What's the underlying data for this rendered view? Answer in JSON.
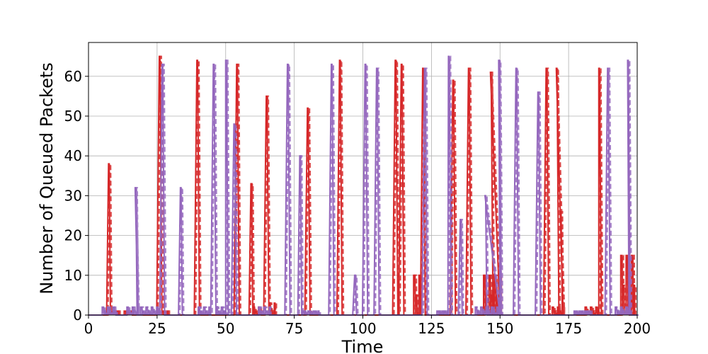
{
  "chart_data": {
    "type": "line",
    "title": "",
    "xlabel": "Time",
    "ylabel": "Number of Queued Packets",
    "xlim": [
      0,
      200
    ],
    "ylim": [
      0,
      68.5
    ],
    "xticks": [
      0,
      25,
      50,
      75,
      100,
      125,
      150,
      175,
      200
    ],
    "yticks": [
      0,
      10,
      20,
      30,
      40,
      50,
      60
    ],
    "grid": true,
    "legend": "none",
    "colors": {
      "red": "#d62728",
      "purple": "#9467bd"
    },
    "series": [
      {
        "color": "#d62728",
        "peaks": [
          [
            7.3,
            38
          ],
          [
            25.8,
            65
          ],
          [
            39.5,
            64
          ],
          [
            54,
            63
          ],
          [
            59.2,
            33
          ],
          [
            64.8,
            55
          ],
          [
            79.8,
            52
          ],
          [
            91.5,
            64
          ],
          [
            111.8,
            64
          ],
          [
            114,
            63
          ],
          [
            121.8,
            62
          ],
          [
            132.8,
            59
          ],
          [
            138.5,
            62
          ],
          [
            146.5,
            61
          ],
          [
            166.8,
            62
          ],
          [
            170.5,
            62
          ],
          [
            172,
            26
          ],
          [
            186,
            62
          ],
          [
            196.5,
            9
          ]
        ],
        "low_activity": [
          [
            8,
            11,
            1
          ],
          [
            13,
            16,
            1
          ],
          [
            25.5,
            29,
            1
          ],
          [
            60,
            63,
            2
          ],
          [
            65,
            68,
            3
          ],
          [
            118.5,
            121,
            10
          ],
          [
            144,
            150,
            10
          ],
          [
            169,
            173,
            2
          ],
          [
            181,
            186,
            2
          ],
          [
            194,
            199,
            15
          ]
        ]
      },
      {
        "color": "#9467bd",
        "peaks": [
          [
            17,
            32
          ],
          [
            26.8,
            63
          ],
          [
            33.5,
            32
          ],
          [
            45.5,
            63
          ],
          [
            50,
            64
          ],
          [
            53,
            48
          ],
          [
            72.5,
            63
          ],
          [
            77,
            40
          ],
          [
            88.5,
            63
          ],
          [
            97,
            10
          ],
          [
            100.8,
            63
          ],
          [
            105,
            62
          ],
          [
            122.5,
            62
          ],
          [
            131.2,
            65
          ],
          [
            135.5,
            24
          ],
          [
            144.5,
            30
          ],
          [
            149.5,
            64
          ],
          [
            155.8,
            62
          ],
          [
            163.8,
            56
          ],
          [
            189.2,
            62
          ],
          [
            196.5,
            64
          ]
        ],
        "low_activity": [
          [
            5,
            10,
            2
          ],
          [
            14,
            18,
            2
          ],
          [
            19,
            26,
            2
          ],
          [
            40,
            44,
            2
          ],
          [
            46,
            50,
            2
          ],
          [
            62,
            66,
            2
          ],
          [
            78,
            84,
            1
          ],
          [
            127,
            131,
            1
          ],
          [
            141,
            150,
            2
          ],
          [
            177,
            183,
            1
          ],
          [
            192,
            197,
            2
          ]
        ]
      }
    ]
  }
}
